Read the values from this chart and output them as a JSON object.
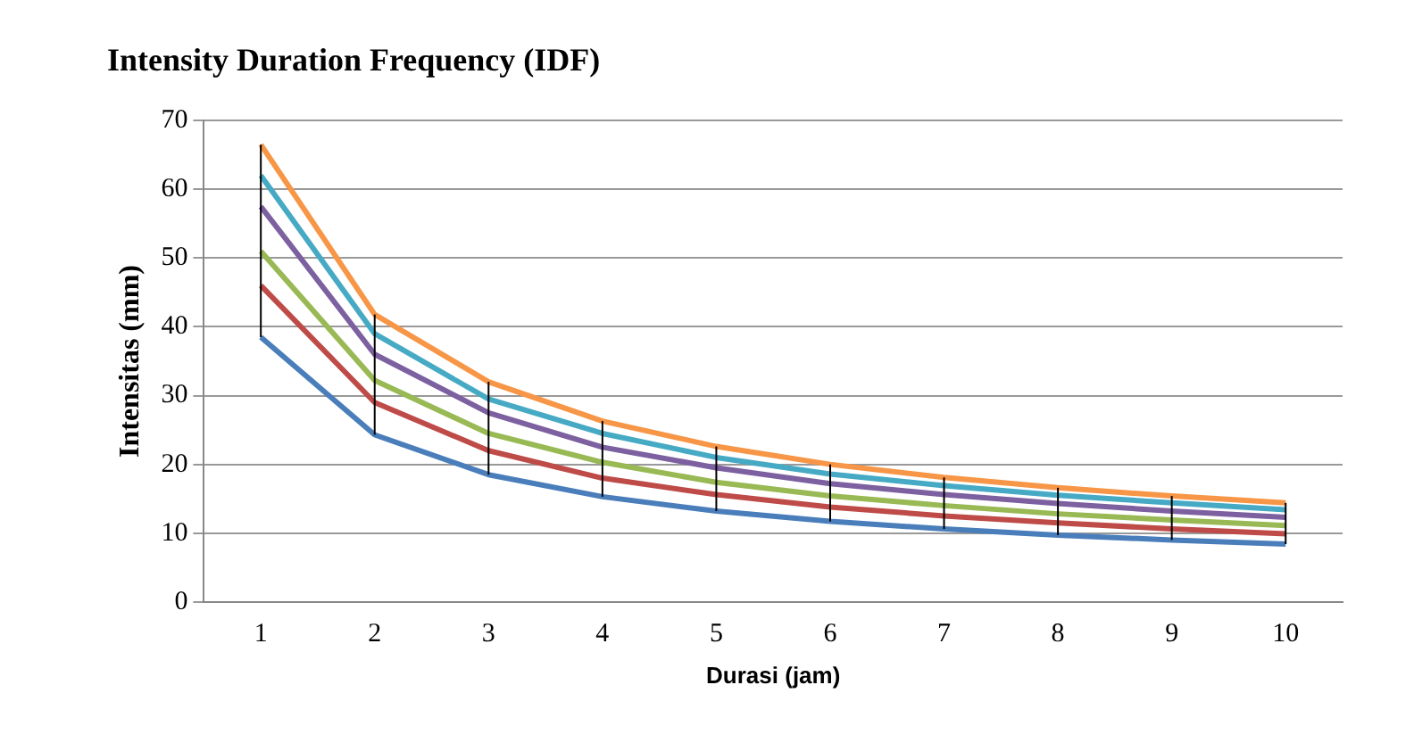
{
  "chart_data": {
    "type": "line",
    "title": "Intensity Duration Frequency (IDF)",
    "xlabel": "Durasi (jam)",
    "ylabel": "Intensitas (mm)",
    "categories": [
      "1",
      "2",
      "3",
      "4",
      "5",
      "6",
      "7",
      "8",
      "9",
      "10"
    ],
    "series": [
      {
        "color": "#4a7ebb",
        "values": [
          38.5,
          24.3,
          18.5,
          15.3,
          13.2,
          11.7,
          10.6,
          9.7,
          9,
          8.4
        ],
        "errors": [
          [
            38.5,
            66.5
          ],
          [
            24.3,
            41.8
          ],
          [
            18.5,
            32
          ],
          [
            15.3,
            26.3
          ],
          [
            13.2,
            22.6
          ],
          [
            11.7,
            20
          ],
          [
            10.6,
            18.1
          ],
          [
            9.7,
            16.6
          ],
          [
            9,
            15.4
          ],
          [
            8.4,
            14.4
          ]
        ]
      },
      {
        "color": "#be4b48",
        "values": [
          46,
          29,
          22,
          18,
          15.6,
          13.8,
          12.5,
          11.5,
          10.6,
          9.9
        ]
      },
      {
        "color": "#98b954",
        "values": [
          51,
          32.2,
          24.5,
          20.3,
          17.4,
          15.4,
          14,
          12.8,
          11.9,
          11.1
        ]
      },
      {
        "color": "#7d60a0",
        "values": [
          57.5,
          36,
          27.5,
          22.5,
          19.5,
          17.2,
          15.6,
          14.3,
          13.2,
          12.3
        ]
      },
      {
        "color": "#46aac5",
        "values": [
          62,
          39,
          29.5,
          24.5,
          21,
          18.6,
          16.9,
          15.5,
          14.4,
          13.4
        ]
      },
      {
        "color": "#f79646",
        "values": [
          66.5,
          41.8,
          32,
          26.3,
          22.6,
          20,
          18.1,
          16.6,
          15.4,
          14.4
        ]
      }
    ],
    "ylim": [
      0,
      70
    ],
    "yticks": [
      0,
      10,
      20,
      30,
      40,
      50,
      60,
      70
    ],
    "grid": "y",
    "legend": false,
    "marker": "none",
    "line_style": "solid"
  }
}
